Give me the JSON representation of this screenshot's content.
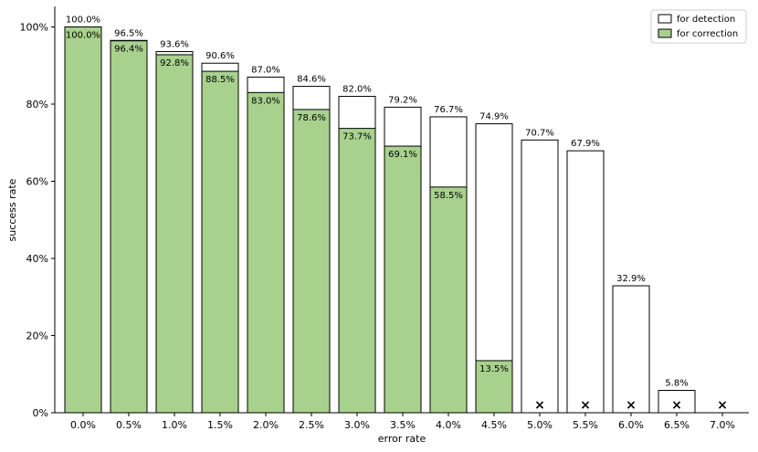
{
  "chart_data": {
    "type": "bar",
    "xlabel": "error rate",
    "ylabel": "success rate",
    "ylim": [
      0,
      105
    ],
    "yticks": [
      "0%",
      "20%",
      "40%",
      "60%",
      "80%",
      "100%"
    ],
    "categories": [
      "0.0%",
      "0.5%",
      "1.0%",
      "1.5%",
      "2.0%",
      "2.5%",
      "3.0%",
      "3.5%",
      "4.0%",
      "4.5%",
      "5.0%",
      "5.5%",
      "6.0%",
      "6.5%",
      "7.0%"
    ],
    "series": [
      {
        "name": "for detection",
        "color": "#ffffff",
        "values": [
          100.0,
          96.5,
          93.6,
          90.6,
          87.0,
          84.6,
          82.0,
          79.2,
          76.7,
          74.9,
          70.7,
          67.9,
          32.9,
          5.8,
          0
        ],
        "labels": [
          "100.0%",
          "96.5%",
          "93.6%",
          "90.6%",
          "87.0%",
          "84.6%",
          "82.0%",
          "79.2%",
          "76.7%",
          "74.9%",
          "70.7%",
          "67.9%",
          "32.9%",
          "5.8%",
          null
        ]
      },
      {
        "name": "for correction",
        "color": "#a8d18d",
        "values": [
          100.0,
          96.4,
          92.8,
          88.5,
          83.0,
          78.6,
          73.7,
          69.1,
          58.5,
          13.5,
          0,
          0,
          0,
          0,
          0
        ],
        "labels": [
          "100.0%",
          "96.4%",
          "92.8%",
          "88.5%",
          "83.0%",
          "78.6%",
          "73.7%",
          "69.1%",
          "58.5%",
          "13.5%",
          null,
          null,
          null,
          null,
          null
        ]
      }
    ],
    "zero_markers": {
      "symbol": "×",
      "categories": [
        "5.0%",
        "5.5%",
        "6.0%",
        "6.5%",
        "7.0%"
      ]
    },
    "legend_position": "top-right",
    "grid": false
  }
}
